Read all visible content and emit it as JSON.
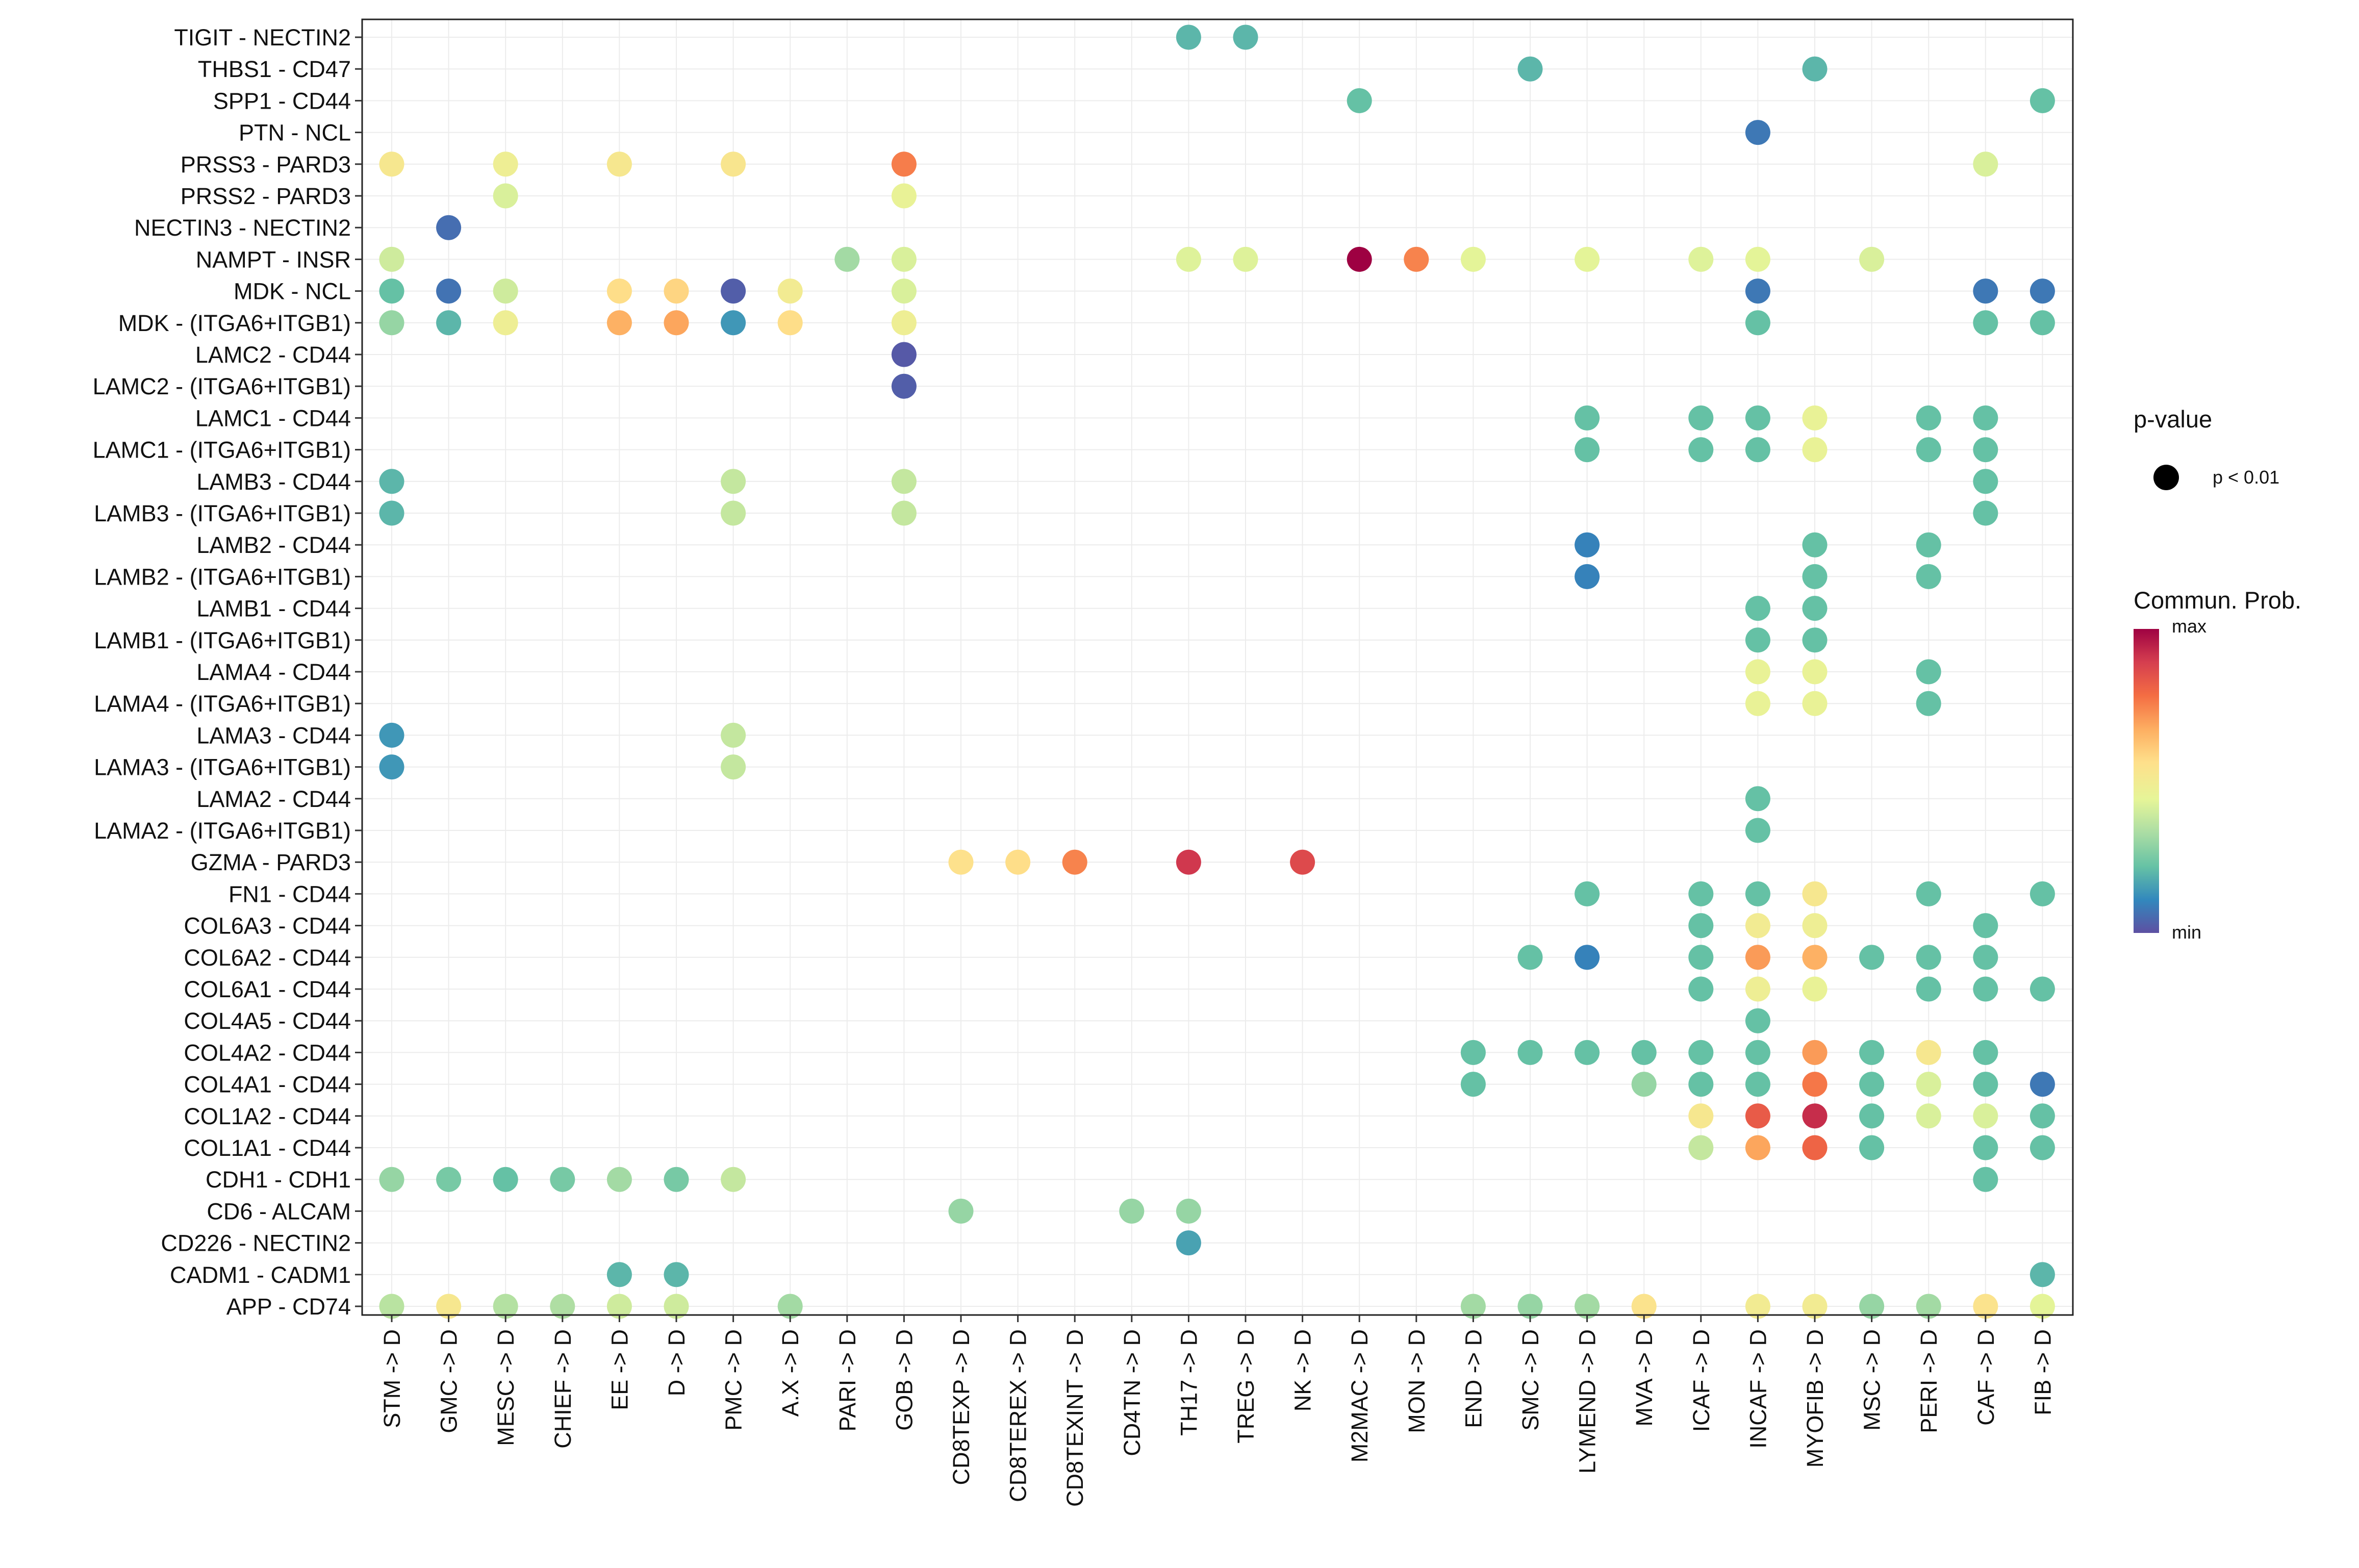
{
  "chart_data": {
    "type": "scatter",
    "title": "",
    "xlabel": "",
    "ylabel": "",
    "grid": true,
    "x_categories": [
      "STM -> D",
      "GMC -> D",
      "MESC -> D",
      "CHIEF -> D",
      "EE -> D",
      "D -> D",
      "PMC -> D",
      "A.X -> D",
      "PARI -> D",
      "GOB -> D",
      "CD8TEXP -> D",
      "CD8TEREX -> D",
      "CD8TEXINT -> D",
      "CD4TN -> D",
      "TH17 -> D",
      "TREG -> D",
      "NK -> D",
      "M2MAC -> D",
      "MON -> D",
      "END -> D",
      "SMC -> D",
      "LYMEND -> D",
      "MVA -> D",
      "ICAF -> D",
      "INCAF -> D",
      "MYOFIB -> D",
      "MSC -> D",
      "PERI -> D",
      "CAF -> D",
      "FIB -> D"
    ],
    "y_categories": [
      "TIGIT - NECTIN2",
      "THBS1 - CD47",
      "SPP1 - CD44",
      "PTN - NCL",
      "PRSS3 - PARD3",
      "PRSS2 - PARD3",
      "NECTIN3 - NECTIN2",
      "NAMPT - INSR",
      "MDK - NCL",
      "MDK - (ITGA6+ITGB1)",
      "LAMC2 - CD44",
      "LAMC2 - (ITGA6+ITGB1)",
      "LAMC1 - CD44",
      "LAMC1 - (ITGA6+ITGB1)",
      "LAMB3 - CD44",
      "LAMB3 - (ITGA6+ITGB1)",
      "LAMB2 - CD44",
      "LAMB2 - (ITGA6+ITGB1)",
      "LAMB1 - CD44",
      "LAMB1 - (ITGA6+ITGB1)",
      "LAMA4 - CD44",
      "LAMA4 - (ITGA6+ITGB1)",
      "LAMA3 - CD44",
      "LAMA3 - (ITGA6+ITGB1)",
      "LAMA2 - CD44",
      "LAMA2 - (ITGA6+ITGB1)",
      "GZMA - PARD3",
      "FN1 - CD44",
      "COL6A3 - CD44",
      "COL6A2 - CD44",
      "COL6A1 - CD44",
      "COL4A5 - CD44",
      "COL4A2 - CD44",
      "COL4A1 - CD44",
      "COL1A2 - CD44",
      "COL1A1 - CD44",
      "CDH1 - CDH1",
      "CD6 - ALCAM",
      "CD226 - NECTIN2",
      "CADM1 - CADM1",
      "APP - CD74"
    ],
    "value_scale": "0 = min, 1 = max (normalized communication probability)",
    "points": [
      [
        "TH17 -> D",
        "TIGIT - NECTIN2",
        0.2
      ],
      [
        "TREG -> D",
        "TIGIT - NECTIN2",
        0.2
      ],
      [
        "SMC -> D",
        "THBS1 - CD47",
        0.2
      ],
      [
        "MYOFIB -> D",
        "THBS1 - CD47",
        0.2
      ],
      [
        "M2MAC -> D",
        "SPP1 - CD44",
        0.22
      ],
      [
        "FIB -> D",
        "SPP1 - CD44",
        0.22
      ],
      [
        "INCAF -> D",
        "PTN - NCL",
        0.08
      ],
      [
        "STM -> D",
        "PRSS3 - PARD3",
        0.52
      ],
      [
        "MESC -> D",
        "PRSS3 - PARD3",
        0.48
      ],
      [
        "EE -> D",
        "PRSS3 - PARD3",
        0.52
      ],
      [
        "PMC -> D",
        "PRSS3 - PARD3",
        0.53
      ],
      [
        "GOB -> D",
        "PRSS3 - PARD3",
        0.75
      ],
      [
        "CAF -> D",
        "PRSS3 - PARD3",
        0.42
      ],
      [
        "MESC -> D",
        "PRSS2 - PARD3",
        0.42
      ],
      [
        "GOB -> D",
        "PRSS2 - PARD3",
        0.46
      ],
      [
        "GMC -> D",
        "NECTIN3 - NECTIN2",
        0.06
      ],
      [
        "STM -> D",
        "NAMPT - INSR",
        0.4
      ],
      [
        "PARI -> D",
        "NAMPT - INSR",
        0.32
      ],
      [
        "GOB -> D",
        "NAMPT - INSR",
        0.42
      ],
      [
        "TH17 -> D",
        "NAMPT - INSR",
        0.43
      ],
      [
        "TREG -> D",
        "NAMPT - INSR",
        0.43
      ],
      [
        "M2MAC -> D",
        "NAMPT - INSR",
        1.0
      ],
      [
        "MON -> D",
        "NAMPT - INSR",
        0.74
      ],
      [
        "END -> D",
        "NAMPT - INSR",
        0.44
      ],
      [
        "LYMEND -> D",
        "NAMPT - INSR",
        0.44
      ],
      [
        "ICAF -> D",
        "NAMPT - INSR",
        0.43
      ],
      [
        "INCAF -> D",
        "NAMPT - INSR",
        0.44
      ],
      [
        "MSC -> D",
        "NAMPT - INSR",
        0.42
      ],
      [
        "STM -> D",
        "MDK - NCL",
        0.22
      ],
      [
        "GMC -> D",
        "MDK - NCL",
        0.07
      ],
      [
        "MESC -> D",
        "MDK - NCL",
        0.4
      ],
      [
        "EE -> D",
        "MDK - NCL",
        0.56
      ],
      [
        "D -> D",
        "MDK - NCL",
        0.58
      ],
      [
        "PMC -> D",
        "MDK - NCL",
        0.03
      ],
      [
        "A.X -> D",
        "MDK - NCL",
        0.5
      ],
      [
        "GOB -> D",
        "MDK - NCL",
        0.42
      ],
      [
        "INCAF -> D",
        "MDK - NCL",
        0.08
      ],
      [
        "CAF -> D",
        "MDK - NCL",
        0.08
      ],
      [
        "FIB -> D",
        "MDK - NCL",
        0.08
      ],
      [
        "STM -> D",
        "MDK - (ITGA6+ITGB1)",
        0.3
      ],
      [
        "GMC -> D",
        "MDK - (ITGA6+ITGB1)",
        0.2
      ],
      [
        "MESC -> D",
        "MDK - (ITGA6+ITGB1)",
        0.48
      ],
      [
        "EE -> D",
        "MDK - (ITGA6+ITGB1)",
        0.66
      ],
      [
        "D -> D",
        "MDK - (ITGA6+ITGB1)",
        0.68
      ],
      [
        "PMC -> D",
        "MDK - (ITGA6+ITGB1)",
        0.14
      ],
      [
        "A.X -> D",
        "MDK - (ITGA6+ITGB1)",
        0.56
      ],
      [
        "GOB -> D",
        "MDK - (ITGA6+ITGB1)",
        0.48
      ],
      [
        "INCAF -> D",
        "MDK - (ITGA6+ITGB1)",
        0.22
      ],
      [
        "CAF -> D",
        "MDK - (ITGA6+ITGB1)",
        0.22
      ],
      [
        "FIB -> D",
        "MDK - (ITGA6+ITGB1)",
        0.22
      ],
      [
        "GOB -> D",
        "LAMC2 - CD44",
        0.02
      ],
      [
        "GOB -> D",
        "LAMC2 - (ITGA6+ITGB1)",
        0.03
      ],
      [
        "LYMEND -> D",
        "LAMC1 - CD44",
        0.22
      ],
      [
        "ICAF -> D",
        "LAMC1 - CD44",
        0.22
      ],
      [
        "INCAF -> D",
        "LAMC1 - CD44",
        0.22
      ],
      [
        "MYOFIB -> D",
        "LAMC1 - CD44",
        0.46
      ],
      [
        "PERI -> D",
        "LAMC1 - CD44",
        0.22
      ],
      [
        "CAF -> D",
        "LAMC1 - CD44",
        0.22
      ],
      [
        "LYMEND -> D",
        "LAMC1 - (ITGA6+ITGB1)",
        0.22
      ],
      [
        "ICAF -> D",
        "LAMC1 - (ITGA6+ITGB1)",
        0.22
      ],
      [
        "INCAF -> D",
        "LAMC1 - (ITGA6+ITGB1)",
        0.22
      ],
      [
        "MYOFIB -> D",
        "LAMC1 - (ITGA6+ITGB1)",
        0.46
      ],
      [
        "PERI -> D",
        "LAMC1 - (ITGA6+ITGB1)",
        0.22
      ],
      [
        "CAF -> D",
        "LAMC1 - (ITGA6+ITGB1)",
        0.22
      ],
      [
        "STM -> D",
        "LAMB3 - CD44",
        0.2
      ],
      [
        "PMC -> D",
        "LAMB3 - CD44",
        0.38
      ],
      [
        "GOB -> D",
        "LAMB3 - CD44",
        0.38
      ],
      [
        "CAF -> D",
        "LAMB3 - CD44",
        0.22
      ],
      [
        "STM -> D",
        "LAMB3 - (ITGA6+ITGB1)",
        0.2
      ],
      [
        "PMC -> D",
        "LAMB3 - (ITGA6+ITGB1)",
        0.38
      ],
      [
        "GOB -> D",
        "LAMB3 - (ITGA6+ITGB1)",
        0.38
      ],
      [
        "CAF -> D",
        "LAMB3 - (ITGA6+ITGB1)",
        0.22
      ],
      [
        "LYMEND -> D",
        "LAMB2 - CD44",
        0.1
      ],
      [
        "MYOFIB -> D",
        "LAMB2 - CD44",
        0.22
      ],
      [
        "PERI -> D",
        "LAMB2 - CD44",
        0.22
      ],
      [
        "LYMEND -> D",
        "LAMB2 - (ITGA6+ITGB1)",
        0.1
      ],
      [
        "MYOFIB -> D",
        "LAMB2 - (ITGA6+ITGB1)",
        0.22
      ],
      [
        "PERI -> D",
        "LAMB2 - (ITGA6+ITGB1)",
        0.22
      ],
      [
        "INCAF -> D",
        "LAMB1 - CD44",
        0.22
      ],
      [
        "MYOFIB -> D",
        "LAMB1 - CD44",
        0.22
      ],
      [
        "INCAF -> D",
        "LAMB1 - (ITGA6+ITGB1)",
        0.22
      ],
      [
        "MYOFIB -> D",
        "LAMB1 - (ITGA6+ITGB1)",
        0.22
      ],
      [
        "INCAF -> D",
        "LAMA4 - CD44",
        0.46
      ],
      [
        "MYOFIB -> D",
        "LAMA4 - CD44",
        0.46
      ],
      [
        "PERI -> D",
        "LAMA4 - CD44",
        0.22
      ],
      [
        "INCAF -> D",
        "LAMA4 - (ITGA6+ITGB1)",
        0.46
      ],
      [
        "MYOFIB -> D",
        "LAMA4 - (ITGA6+ITGB1)",
        0.46
      ],
      [
        "PERI -> D",
        "LAMA4 - (ITGA6+ITGB1)",
        0.22
      ],
      [
        "STM -> D",
        "LAMA3 - CD44",
        0.14
      ],
      [
        "PMC -> D",
        "LAMA3 - CD44",
        0.38
      ],
      [
        "STM -> D",
        "LAMA3 - (ITGA6+ITGB1)",
        0.14
      ],
      [
        "PMC -> D",
        "LAMA3 - (ITGA6+ITGB1)",
        0.38
      ],
      [
        "INCAF -> D",
        "LAMA2 - CD44",
        0.22
      ],
      [
        "INCAF -> D",
        "LAMA2 - (ITGA6+ITGB1)",
        0.22
      ],
      [
        "CD8TEXP -> D",
        "GZMA - PARD3",
        0.55
      ],
      [
        "CD8TEREX -> D",
        "GZMA - PARD3",
        0.56
      ],
      [
        "CD8TEXINT -> D",
        "GZMA - PARD3",
        0.74
      ],
      [
        "TH17 -> D",
        "GZMA - PARD3",
        0.9
      ],
      [
        "NK -> D",
        "GZMA - PARD3",
        0.86
      ],
      [
        "LYMEND -> D",
        "FN1 - CD44",
        0.22
      ],
      [
        "ICAF -> D",
        "FN1 - CD44",
        0.22
      ],
      [
        "INCAF -> D",
        "FN1 - CD44",
        0.22
      ],
      [
        "MYOFIB -> D",
        "FN1 - CD44",
        0.52
      ],
      [
        "PERI -> D",
        "FN1 - CD44",
        0.22
      ],
      [
        "FIB -> D",
        "FN1 - CD44",
        0.22
      ],
      [
        "ICAF -> D",
        "COL6A3 - CD44",
        0.22
      ],
      [
        "INCAF -> D",
        "COL6A3 - CD44",
        0.5
      ],
      [
        "MYOFIB -> D",
        "COL6A3 - CD44",
        0.48
      ],
      [
        "CAF -> D",
        "COL6A3 - CD44",
        0.22
      ],
      [
        "SMC -> D",
        "COL6A2 - CD44",
        0.22
      ],
      [
        "LYMEND -> D",
        "COL6A2 - CD44",
        0.1
      ],
      [
        "ICAF -> D",
        "COL6A2 - CD44",
        0.22
      ],
      [
        "INCAF -> D",
        "COL6A2 - CD44",
        0.7
      ],
      [
        "MYOFIB -> D",
        "COL6A2 - CD44",
        0.66
      ],
      [
        "MSC -> D",
        "COL6A2 - CD44",
        0.22
      ],
      [
        "PERI -> D",
        "COL6A2 - CD44",
        0.22
      ],
      [
        "CAF -> D",
        "COL6A2 - CD44",
        0.22
      ],
      [
        "ICAF -> D",
        "COL6A1 - CD44",
        0.22
      ],
      [
        "INCAF -> D",
        "COL6A1 - CD44",
        0.48
      ],
      [
        "MYOFIB -> D",
        "COL6A1 - CD44",
        0.46
      ],
      [
        "PERI -> D",
        "COL6A1 - CD44",
        0.22
      ],
      [
        "CAF -> D",
        "COL6A1 - CD44",
        0.22
      ],
      [
        "FIB -> D",
        "COL6A1 - CD44",
        0.22
      ],
      [
        "INCAF -> D",
        "COL4A5 - CD44",
        0.22
      ],
      [
        "END -> D",
        "COL4A2 - CD44",
        0.22
      ],
      [
        "SMC -> D",
        "COL4A2 - CD44",
        0.22
      ],
      [
        "LYMEND -> D",
        "COL4A2 - CD44",
        0.22
      ],
      [
        "MVA -> D",
        "COL4A2 - CD44",
        0.22
      ],
      [
        "ICAF -> D",
        "COL4A2 - CD44",
        0.22
      ],
      [
        "INCAF -> D",
        "COL4A2 - CD44",
        0.22
      ],
      [
        "MYOFIB -> D",
        "COL4A2 - CD44",
        0.7
      ],
      [
        "MSC -> D",
        "COL4A2 - CD44",
        0.22
      ],
      [
        "PERI -> D",
        "COL4A2 - CD44",
        0.52
      ],
      [
        "CAF -> D",
        "COL4A2 - CD44",
        0.22
      ],
      [
        "END -> D",
        "COL4A1 - CD44",
        0.22
      ],
      [
        "MVA -> D",
        "COL4A1 - CD44",
        0.3
      ],
      [
        "ICAF -> D",
        "COL4A1 - CD44",
        0.22
      ],
      [
        "INCAF -> D",
        "COL4A1 - CD44",
        0.22
      ],
      [
        "MYOFIB -> D",
        "COL4A1 - CD44",
        0.76
      ],
      [
        "MSC -> D",
        "COL4A1 - CD44",
        0.22
      ],
      [
        "PERI -> D",
        "COL4A1 - CD44",
        0.42
      ],
      [
        "CAF -> D",
        "COL4A1 - CD44",
        0.22
      ],
      [
        "FIB -> D",
        "COL4A1 - CD44",
        0.08
      ],
      [
        "ICAF -> D",
        "COL1A2 - CD44",
        0.52
      ],
      [
        "INCAF -> D",
        "COL1A2 - CD44",
        0.82
      ],
      [
        "MYOFIB -> D",
        "COL1A2 - CD44",
        0.92
      ],
      [
        "MSC -> D",
        "COL1A2 - CD44",
        0.22
      ],
      [
        "PERI -> D",
        "COL1A2 - CD44",
        0.42
      ],
      [
        "CAF -> D",
        "COL1A2 - CD44",
        0.42
      ],
      [
        "FIB -> D",
        "COL1A2 - CD44",
        0.22
      ],
      [
        "ICAF -> D",
        "COL1A1 - CD44",
        0.38
      ],
      [
        "INCAF -> D",
        "COL1A1 - CD44",
        0.68
      ],
      [
        "MYOFIB -> D",
        "COL1A1 - CD44",
        0.8
      ],
      [
        "MSC -> D",
        "COL1A1 - CD44",
        0.22
      ],
      [
        "CAF -> D",
        "COL1A1 - CD44",
        0.22
      ],
      [
        "FIB -> D",
        "COL1A1 - CD44",
        0.22
      ],
      [
        "STM -> D",
        "CDH1 - CDH1",
        0.3
      ],
      [
        "GMC -> D",
        "CDH1 - CDH1",
        0.25
      ],
      [
        "MESC -> D",
        "CDH1 - CDH1",
        0.22
      ],
      [
        "CHIEF -> D",
        "CDH1 - CDH1",
        0.25
      ],
      [
        "EE -> D",
        "CDH1 - CDH1",
        0.32
      ],
      [
        "D -> D",
        "CDH1 - CDH1",
        0.25
      ],
      [
        "PMC -> D",
        "CDH1 - CDH1",
        0.38
      ],
      [
        "CAF -> D",
        "CDH1 - CDH1",
        0.22
      ],
      [
        "CD8TEXP -> D",
        "CD6 - ALCAM",
        0.3
      ],
      [
        "CD4TN -> D",
        "CD6 - ALCAM",
        0.3
      ],
      [
        "TH17 -> D",
        "CD6 - ALCAM",
        0.3
      ],
      [
        "TH17 -> D",
        "CD226 - NECTIN2",
        0.16
      ],
      [
        "EE -> D",
        "CADM1 - CADM1",
        0.2
      ],
      [
        "D -> D",
        "CADM1 - CADM1",
        0.2
      ],
      [
        "FIB -> D",
        "CADM1 - CADM1",
        0.2
      ],
      [
        "STM -> D",
        "APP - CD74",
        0.36
      ],
      [
        "GMC -> D",
        "APP - CD74",
        0.52
      ],
      [
        "MESC -> D",
        "APP - CD74",
        0.35
      ],
      [
        "CHIEF -> D",
        "APP - CD74",
        0.34
      ],
      [
        "EE -> D",
        "APP - CD74",
        0.4
      ],
      [
        "D -> D",
        "APP - CD74",
        0.4
      ],
      [
        "A.X -> D",
        "APP - CD74",
        0.32
      ],
      [
        "END -> D",
        "APP - CD74",
        0.32
      ],
      [
        "SMC -> D",
        "APP - CD74",
        0.3
      ],
      [
        "LYMEND -> D",
        "APP - CD74",
        0.32
      ],
      [
        "MVA -> D",
        "APP - CD74",
        0.54
      ],
      [
        "INCAF -> D",
        "APP - CD74",
        0.5
      ],
      [
        "MYOFIB -> D",
        "APP - CD74",
        0.5
      ],
      [
        "MSC -> D",
        "APP - CD74",
        0.3
      ],
      [
        "PERI -> D",
        "APP - CD74",
        0.32
      ],
      [
        "CAF -> D",
        "APP - CD74",
        0.54
      ],
      [
        "FIB -> D",
        "APP - CD74",
        0.44
      ]
    ],
    "legend": {
      "size_title": "p-value",
      "size_entry": "p < 0.01",
      "color_title": "Commun. Prob.",
      "color_max": "max",
      "color_min": "min",
      "palette": [
        "#5e4fa2",
        "#3288bd",
        "#66c2a5",
        "#abdda4",
        "#e6f598",
        "#fee08b",
        "#fdae61",
        "#f46d43",
        "#d53e4f",
        "#9e0142"
      ]
    }
  }
}
